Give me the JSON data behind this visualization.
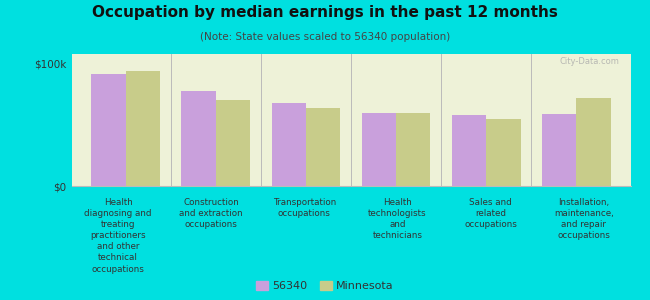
{
  "title": "Occupation by median earnings in the past 12 months",
  "subtitle": "(Note: State values scaled to 56340 population)",
  "background_color": "#00e0e0",
  "plot_bg_color": "#eef2d8",
  "categories": [
    "Health\ndiagnosing and\ntreating\npractitioners\nand other\ntechnical\noccupations",
    "Construction\nand extraction\noccupations",
    "Transportation\noccupations",
    "Health\ntechnologists\nand\ntechnicians",
    "Sales and\nrelated\noccupations",
    "Installation,\nmaintenance,\nand repair\noccupations"
  ],
  "values_56340": [
    92000,
    78000,
    68000,
    60000,
    58000,
    59000
  ],
  "values_minnesota": [
    94000,
    70000,
    64000,
    60000,
    55000,
    72000
  ],
  "color_56340": "#c9a0dc",
  "color_minnesota": "#c8cc8a",
  "ylim": [
    0,
    108000
  ],
  "yticks": [
    0,
    100000
  ],
  "ytick_labels": [
    "$0",
    "$100k"
  ],
  "legend_56340": "56340",
  "legend_minnesota": "Minnesota",
  "watermark": "City-Data.com"
}
